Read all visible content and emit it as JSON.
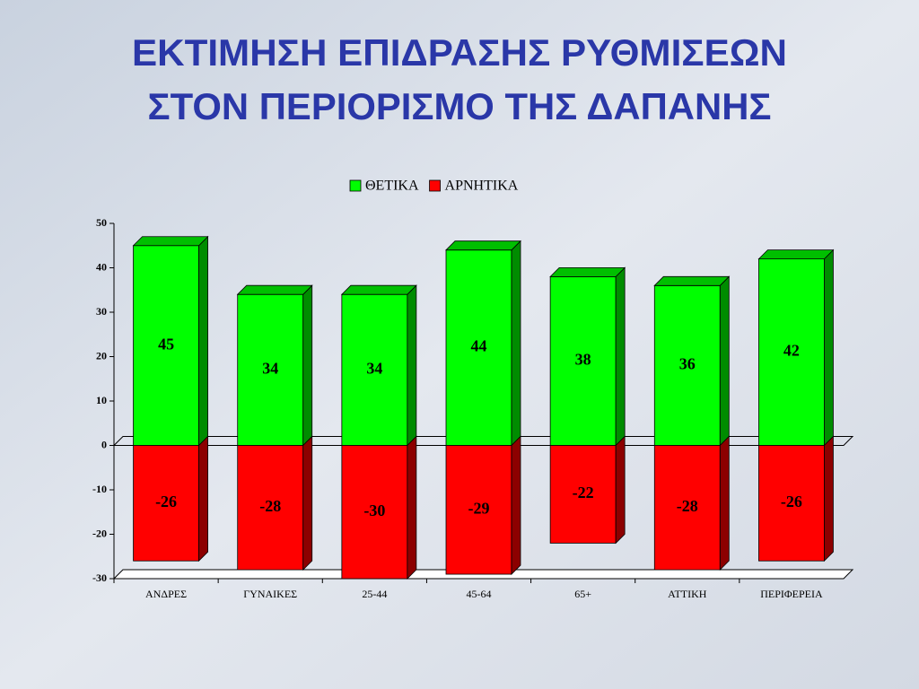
{
  "chart_data": {
    "type": "bar",
    "stacked": true,
    "title": [
      "ΕΚΤΙΜΗΣΗ ΕΠΙΔΡΑΣΗΣ ΡΥΘΜΙΣΕΩΝ",
      "ΣΤΟΝ ΠΕΡΙΟΡΙΣΜΟ ΤΗΣ ΔΑΠΑΝΗΣ"
    ],
    "categories": [
      "ΑΝΔΡΕΣ",
      "ΓΥΝΑΙΚΕΣ",
      "25-44",
      "45-64",
      "65+",
      "ΑΤΤΙΚΗ",
      "ΠΕΡΙΦΕΡΕΙΑ"
    ],
    "series": [
      {
        "name": "ΘΕΤΙΚΑ",
        "color": "#00ff00",
        "values": [
          45,
          34,
          34,
          44,
          38,
          36,
          42
        ]
      },
      {
        "name": "ΑΡΝΗΤΙΚΑ",
        "color": "#ff0000",
        "values": [
          -26,
          -28,
          -30,
          -29,
          -22,
          -28,
          -26
        ]
      }
    ],
    "ylim": [
      -30,
      50
    ],
    "yticks": [
      -30,
      -20,
      -10,
      0,
      10,
      20,
      30,
      40,
      50
    ],
    "legend": "top",
    "data_labels": true
  }
}
